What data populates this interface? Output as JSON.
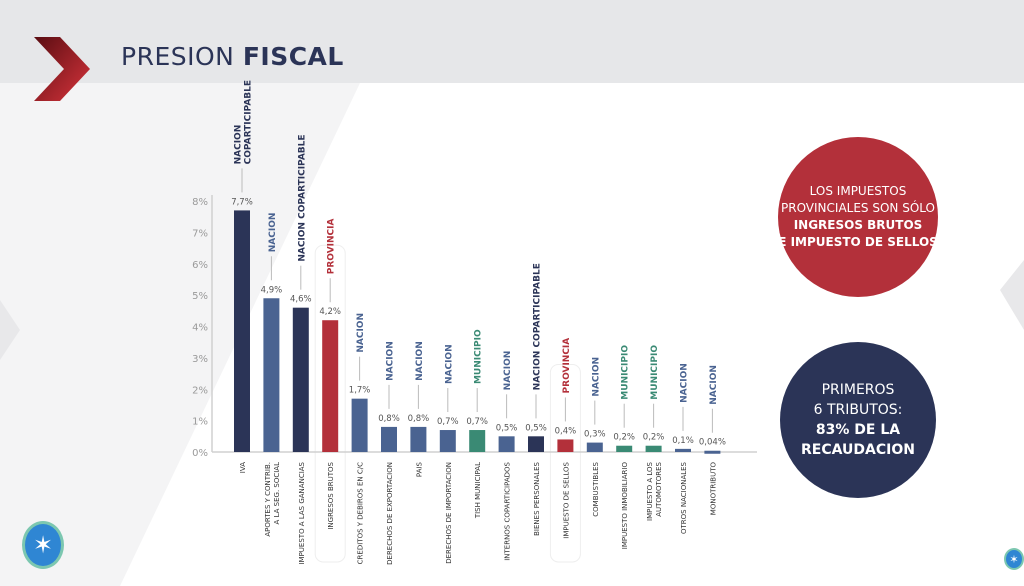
{
  "header": {
    "title_regular": "PRESION",
    "title_bold": "FISCAL"
  },
  "colors": {
    "nacion": "#4a6391",
    "nacion_coparticipable": "#2b3457",
    "provincia": "#b3303a",
    "municipio": "#3a8a74",
    "header_bg": "#e6e7e9"
  },
  "chart_data": {
    "type": "bar",
    "yticks": [
      "0%",
      "1%",
      "2%",
      "3%",
      "4%",
      "5%",
      "6%",
      "7%",
      "8%"
    ],
    "ylim": [
      0,
      8
    ],
    "categories": [
      [
        "IVA"
      ],
      [
        "APORTES Y CONTRIB.",
        "A LA SEG. SOCIAL"
      ],
      [
        "IMPUESTO A LAS GANANCIAS"
      ],
      [
        "INGRESOS BRUTOS"
      ],
      [
        "CREDITOS Y DEBIROS EN C/C"
      ],
      [
        "DERECHOS DE EXPORTACION"
      ],
      [
        "PAIS"
      ],
      [
        "DERECHOS DE IMPORTACION"
      ],
      [
        "TISH MUNICIPAL"
      ],
      [
        "INTERNOS COPARTICIPADOS"
      ],
      [
        "BIENES PERSONALES"
      ],
      [
        "IMPUESTO DE SELLOS"
      ],
      [
        "COMBUSTIBLES"
      ],
      [
        "IMPUESTO INMOBILIARIO"
      ],
      [
        "IMPUESTO A LOS",
        "AUTOMOTORES"
      ],
      [
        "OTROS NACIONALES"
      ],
      [
        "MONOTRIBUTO"
      ]
    ],
    "values": [
      7.7,
      4.9,
      4.6,
      4.2,
      1.7,
      0.8,
      0.8,
      0.7,
      0.7,
      0.5,
      0.5,
      0.4,
      0.3,
      0.2,
      0.2,
      0.1,
      0.04
    ],
    "value_labels": [
      "7,7%",
      "4,9%",
      "4,6%",
      "4,2%",
      "1,7%",
      "0,8%",
      "0,8%",
      "0,7%",
      "0,7%",
      "0,5%",
      "0,5%",
      "0,4%",
      "0,3%",
      "0,2%",
      "0,2%",
      "0,1%",
      "0,04%"
    ],
    "jurisdiction": [
      [
        "NACION",
        "COPARTICIPABLE"
      ],
      [
        "NACION"
      ],
      [
        "NACION COPARTICIPABLE"
      ],
      [
        "PROVINCIA"
      ],
      [
        "NACION"
      ],
      [
        "NACION"
      ],
      [
        "NACION"
      ],
      [
        "NACION"
      ],
      [
        "MUNICIPIO"
      ],
      [
        "NACION"
      ],
      [
        "NACION COPARTICIPABLE"
      ],
      [
        "PROVINCIA"
      ],
      [
        "NACION"
      ],
      [
        "MUNICIPIO"
      ],
      [
        "MUNICIPIO"
      ],
      [
        "NACION"
      ],
      [
        "NACION"
      ]
    ],
    "jurisdiction_type": [
      "nacion_coparticipable",
      "nacion",
      "nacion_coparticipable",
      "provincia",
      "nacion",
      "nacion",
      "nacion",
      "nacion",
      "municipio",
      "nacion",
      "nacion_coparticipable",
      "provincia",
      "nacion",
      "municipio",
      "municipio",
      "nacion",
      "nacion"
    ],
    "grid": false,
    "legend": "none"
  },
  "callouts": {
    "provincial": {
      "line1": "LOS IMPUESTOS",
      "line2": "PROVINCIALES SON SÓLO",
      "line3": "INGRESOS BRUTOS",
      "line4": "E IMPUESTO DE SELLOS"
    },
    "top6": {
      "line1": "PRIMEROS",
      "line2": "6 TRIBUTOS:",
      "line3": "83% DE LA",
      "line4": "RECAUDACION"
    }
  }
}
